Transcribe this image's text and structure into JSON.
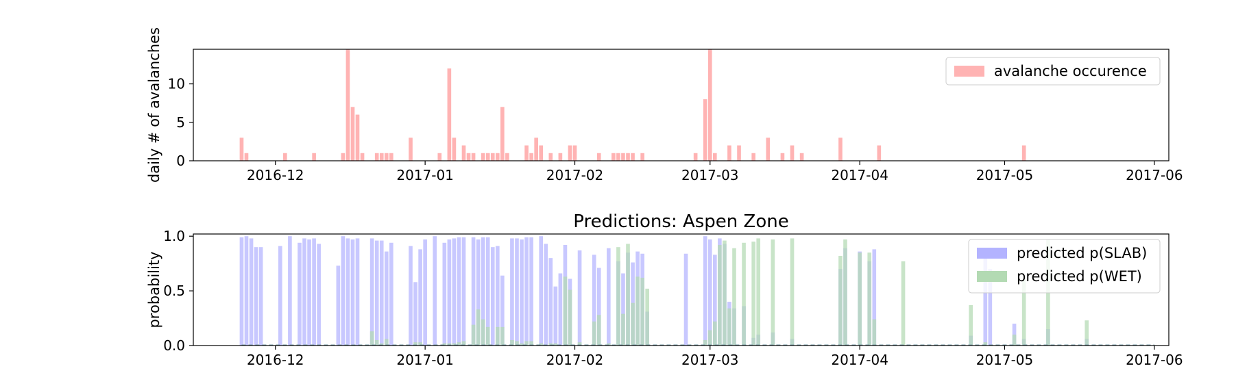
{
  "chart_data": [
    {
      "type": "bar",
      "title": "",
      "xlabel": "",
      "ylabel": "daily # of avalanches",
      "x_type": "date",
      "xlim": [
        "2016-11-14",
        "2017-06-04"
      ],
      "ylim": [
        0,
        14.5
      ],
      "yticks": [
        0,
        5,
        10
      ],
      "xticks": [
        "2016-12",
        "2017-01",
        "2017-02",
        "2017-03",
        "2017-04",
        "2017-05",
        "2017-06"
      ],
      "grid": false,
      "legend_position": "top-right",
      "series": [
        {
          "name": "avalanche occurence",
          "color": "#ffb3b3",
          "points": [
            [
              "2016-11-24",
              3
            ],
            [
              "2016-11-25",
              1
            ],
            [
              "2016-12-03",
              1
            ],
            [
              "2016-12-09",
              1
            ],
            [
              "2016-12-15",
              1
            ],
            [
              "2016-12-16",
              16
            ],
            [
              "2016-12-17",
              7
            ],
            [
              "2016-12-18",
              6
            ],
            [
              "2016-12-19",
              1
            ],
            [
              "2016-12-22",
              1
            ],
            [
              "2016-12-23",
              1
            ],
            [
              "2016-12-24",
              1
            ],
            [
              "2016-12-25",
              1
            ],
            [
              "2016-12-29",
              3
            ],
            [
              "2017-01-04",
              1
            ],
            [
              "2017-01-06",
              12
            ],
            [
              "2017-01-07",
              3
            ],
            [
              "2017-01-09",
              2
            ],
            [
              "2017-01-10",
              1
            ],
            [
              "2017-01-11",
              1
            ],
            [
              "2017-01-13",
              1
            ],
            [
              "2017-01-14",
              1
            ],
            [
              "2017-01-15",
              1
            ],
            [
              "2017-01-16",
              1
            ],
            [
              "2017-01-17",
              7
            ],
            [
              "2017-01-18",
              1
            ],
            [
              "2017-01-22",
              2
            ],
            [
              "2017-01-23",
              1
            ],
            [
              "2017-01-24",
              3
            ],
            [
              "2017-01-25",
              2
            ],
            [
              "2017-01-27",
              1
            ],
            [
              "2017-01-29",
              1
            ],
            [
              "2017-01-31",
              2
            ],
            [
              "2017-02-01",
              2
            ],
            [
              "2017-02-06",
              1
            ],
            [
              "2017-02-09",
              1
            ],
            [
              "2017-02-10",
              1
            ],
            [
              "2017-02-11",
              1
            ],
            [
              "2017-02-12",
              1
            ],
            [
              "2017-02-13",
              1
            ],
            [
              "2017-02-15",
              1
            ],
            [
              "2017-02-26",
              1
            ],
            [
              "2017-02-28",
              8
            ],
            [
              "2017-03-01",
              16
            ],
            [
              "2017-03-02",
              1
            ],
            [
              "2017-03-05",
              2
            ],
            [
              "2017-03-07",
              2
            ],
            [
              "2017-03-10",
              1
            ],
            [
              "2017-03-13",
              3
            ],
            [
              "2017-03-16",
              1
            ],
            [
              "2017-03-18",
              2
            ],
            [
              "2017-03-20",
              1
            ],
            [
              "2017-03-28",
              3
            ],
            [
              "2017-04-05",
              2
            ],
            [
              "2017-05-05",
              2
            ]
          ]
        }
      ]
    },
    {
      "type": "bar",
      "title": "Predictions: Aspen Zone",
      "xlabel": "",
      "ylabel": "probability",
      "x_type": "date",
      "xlim": [
        "2016-11-14",
        "2017-06-04"
      ],
      "ylim": [
        0,
        1.02
      ],
      "yticks": [
        0.0,
        0.5,
        1.0
      ],
      "ytick_labels": [
        "0.0",
        "0.5",
        "1.0"
      ],
      "xticks": [
        "2016-12",
        "2017-01",
        "2017-02",
        "2017-03",
        "2017-04",
        "2017-05",
        "2017-06"
      ],
      "grid": false,
      "legend_position": "top-right",
      "overlap_color": "#7a9ea8",
      "series": [
        {
          "name": "predicted p(SLAB)",
          "color": "#b3b3ff",
          "points": [
            [
              "2016-11-24",
              0.99
            ],
            [
              "2016-11-25",
              1.0
            ],
            [
              "2016-11-26",
              0.98
            ],
            [
              "2016-11-27",
              0.9
            ],
            [
              "2016-11-28",
              0.9
            ],
            [
              "2016-12-02",
              0.91
            ],
            [
              "2016-12-04",
              1.0
            ],
            [
              "2016-12-06",
              0.94
            ],
            [
              "2016-12-07",
              0.98
            ],
            [
              "2016-12-08",
              0.97
            ],
            [
              "2016-12-09",
              0.98
            ],
            [
              "2016-12-10",
              0.93
            ],
            [
              "2016-12-14",
              0.73
            ],
            [
              "2016-12-15",
              1.0
            ],
            [
              "2016-12-16",
              0.98
            ],
            [
              "2016-12-17",
              0.97
            ],
            [
              "2016-12-18",
              0.98
            ],
            [
              "2016-12-21",
              0.98
            ],
            [
              "2016-12-22",
              0.96
            ],
            [
              "2016-12-23",
              0.96
            ],
            [
              "2016-12-24",
              0.86
            ],
            [
              "2016-12-25",
              0.94
            ],
            [
              "2016-12-29",
              0.91
            ],
            [
              "2016-12-30",
              0.58
            ],
            [
              "2016-12-31",
              0.88
            ],
            [
              "2017-01-01",
              0.97
            ],
            [
              "2017-01-03",
              1.0
            ],
            [
              "2017-01-05",
              0.94
            ],
            [
              "2017-01-06",
              0.97
            ],
            [
              "2017-01-07",
              0.98
            ],
            [
              "2017-01-08",
              0.99
            ],
            [
              "2017-01-09",
              0.99
            ],
            [
              "2017-01-11",
              0.99
            ],
            [
              "2017-01-12",
              0.97
            ],
            [
              "2017-01-13",
              0.99
            ],
            [
              "2017-01-14",
              0.99
            ],
            [
              "2017-01-15",
              0.9
            ],
            [
              "2017-01-16",
              0.91
            ],
            [
              "2017-01-17",
              0.64
            ],
            [
              "2017-01-19",
              0.98
            ],
            [
              "2017-01-20",
              0.98
            ],
            [
              "2017-01-21",
              0.97
            ],
            [
              "2017-01-22",
              0.99
            ],
            [
              "2017-01-23",
              0.99
            ],
            [
              "2017-01-25",
              1.0
            ],
            [
              "2017-01-26",
              0.93
            ],
            [
              "2017-01-27",
              0.8
            ],
            [
              "2017-01-28",
              0.54
            ],
            [
              "2017-01-29",
              0.66
            ],
            [
              "2017-01-30",
              0.92
            ],
            [
              "2017-01-31",
              0.61
            ],
            [
              "2017-02-02",
              0.87
            ],
            [
              "2017-02-05",
              0.83
            ],
            [
              "2017-02-06",
              0.71
            ],
            [
              "2017-02-08",
              0.89
            ],
            [
              "2017-02-10",
              0.77
            ],
            [
              "2017-02-11",
              0.66
            ],
            [
              "2017-02-12",
              0.85
            ],
            [
              "2017-02-13",
              0.76
            ],
            [
              "2017-02-14",
              0.86
            ],
            [
              "2017-02-15",
              0.84
            ],
            [
              "2017-02-16",
              0.31
            ],
            [
              "2017-02-24",
              0.84
            ],
            [
              "2017-02-28",
              1.0
            ],
            [
              "2017-03-01",
              0.97
            ],
            [
              "2017-03-02",
              0.83
            ],
            [
              "2017-03-03",
              0.98
            ],
            [
              "2017-03-04",
              0.93
            ],
            [
              "2017-03-05",
              0.4
            ],
            [
              "2017-03-06",
              0.34
            ],
            [
              "2017-03-08",
              0.36
            ],
            [
              "2017-03-10",
              0.07
            ],
            [
              "2017-03-11",
              0.1
            ],
            [
              "2017-03-14",
              0.12
            ],
            [
              "2017-03-18",
              0.06
            ],
            [
              "2017-03-28",
              0.7
            ],
            [
              "2017-03-29",
              0.89
            ],
            [
              "2017-04-01",
              0.86
            ],
            [
              "2017-04-03",
              0.77
            ],
            [
              "2017-04-04",
              0.88
            ],
            [
              "2017-04-24",
              0.09
            ],
            [
              "2017-04-27",
              0.84
            ],
            [
              "2017-04-28",
              0.7
            ],
            [
              "2017-05-03",
              0.2
            ],
            [
              "2017-05-05",
              0.06
            ],
            [
              "2017-05-10",
              0.15
            ],
            [
              "2017-05-18",
              0.06
            ]
          ]
        },
        {
          "name": "predicted p(WET)",
          "color": "#b3dab3",
          "points": [
            [
              "2016-12-21",
              0.13
            ],
            [
              "2016-12-22",
              0.05
            ],
            [
              "2016-12-23",
              0.02
            ],
            [
              "2016-12-24",
              0.06
            ],
            [
              "2016-12-30",
              0.03
            ],
            [
              "2016-12-31",
              0.03
            ],
            [
              "2017-01-05",
              0.02
            ],
            [
              "2017-01-06",
              0.02
            ],
            [
              "2017-01-07",
              0.02
            ],
            [
              "2017-01-08",
              0.03
            ],
            [
              "2017-01-09",
              0.04
            ],
            [
              "2017-01-11",
              0.19
            ],
            [
              "2017-01-12",
              0.33
            ],
            [
              "2017-01-13",
              0.24
            ],
            [
              "2017-01-14",
              0.17
            ],
            [
              "2017-01-16",
              0.17
            ],
            [
              "2017-01-17",
              0.17
            ],
            [
              "2017-01-19",
              0.05
            ],
            [
              "2017-01-20",
              0.04
            ],
            [
              "2017-01-21",
              0.02
            ],
            [
              "2017-01-22",
              0.04
            ],
            [
              "2017-01-23",
              0.04
            ],
            [
              "2017-01-25",
              0.02
            ],
            [
              "2017-01-27",
              0.02
            ],
            [
              "2017-01-28",
              0.02
            ],
            [
              "2017-01-30",
              0.63
            ],
            [
              "2017-01-31",
              0.51
            ],
            [
              "2017-02-02",
              0.03
            ],
            [
              "2017-02-05",
              0.22
            ],
            [
              "2017-02-06",
              0.28
            ],
            [
              "2017-02-08",
              0.02
            ],
            [
              "2017-02-10",
              0.9
            ],
            [
              "2017-02-11",
              0.29
            ],
            [
              "2017-02-12",
              0.93
            ],
            [
              "2017-02-13",
              0.39
            ],
            [
              "2017-02-14",
              0.63
            ],
            [
              "2017-02-15",
              0.62
            ],
            [
              "2017-02-16",
              0.52
            ],
            [
              "2017-02-28",
              0.05
            ],
            [
              "2017-03-01",
              0.14
            ],
            [
              "2017-03-02",
              0.22
            ],
            [
              "2017-03-03",
              0.92
            ],
            [
              "2017-03-04",
              0.96
            ],
            [
              "2017-03-05",
              0.34
            ],
            [
              "2017-03-06",
              0.89
            ],
            [
              "2017-03-08",
              0.94
            ],
            [
              "2017-03-10",
              0.95
            ],
            [
              "2017-03-11",
              0.98
            ],
            [
              "2017-03-14",
              0.97
            ],
            [
              "2017-03-18",
              0.98
            ],
            [
              "2017-03-28",
              0.82
            ],
            [
              "2017-03-29",
              0.97
            ],
            [
              "2017-04-01",
              0.85
            ],
            [
              "2017-04-03",
              0.85
            ],
            [
              "2017-04-04",
              0.24
            ],
            [
              "2017-04-10",
              0.77
            ],
            [
              "2017-04-24",
              0.37
            ],
            [
              "2017-04-27",
              0.03
            ],
            [
              "2017-05-03",
              0.1
            ],
            [
              "2017-05-05",
              0.6
            ],
            [
              "2017-05-10",
              0.97
            ],
            [
              "2017-05-18",
              0.23
            ]
          ]
        }
      ]
    }
  ]
}
